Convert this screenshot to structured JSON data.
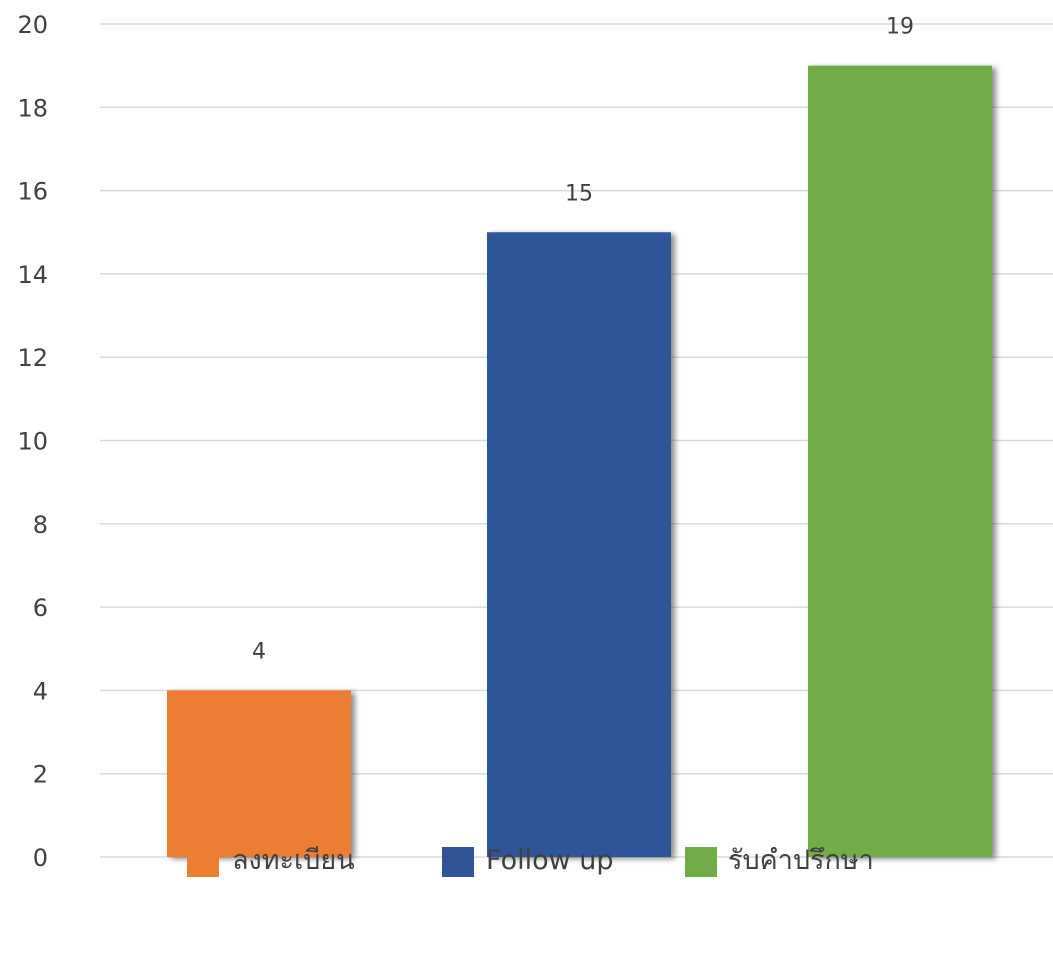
{
  "chart_data": {
    "type": "bar",
    "categories": [
      "ลงทะเบียน",
      "Follow up",
      "รับคำปรึกษา"
    ],
    "series": [
      {
        "name": "ลงทะเบียน",
        "values": [
          4,
          null,
          null
        ],
        "color": "#ED7D31"
      },
      {
        "name": "Follow up",
        "values": [
          null,
          15,
          null
        ],
        "color": "#2F5597"
      },
      {
        "name": "รับคำปรึกษา",
        "values": [
          null,
          null,
          19
        ],
        "color": "#70AD47"
      }
    ],
    "values": [
      4,
      15,
      19
    ],
    "data_labels": [
      "4",
      "15",
      "19"
    ],
    "colors": [
      "#ED7D31",
      "#2F5597",
      "#70AD47"
    ],
    "ylim": [
      0,
      20
    ],
    "yticks": [
      0,
      2,
      4,
      6,
      8,
      10,
      12,
      14,
      16,
      18,
      20
    ],
    "ytick_labels": [
      "0",
      "2",
      "4",
      "6",
      "8",
      "10",
      "12",
      "14",
      "16",
      "18",
      "20"
    ],
    "grid": true,
    "gridline_color": "#D9D9D9",
    "legend_position": "bottom",
    "legend": [
      "ลงทะเบียน",
      "Follow up",
      "รับคำปรึกษา"
    ],
    "title": "",
    "xlabel": "",
    "ylabel": ""
  }
}
